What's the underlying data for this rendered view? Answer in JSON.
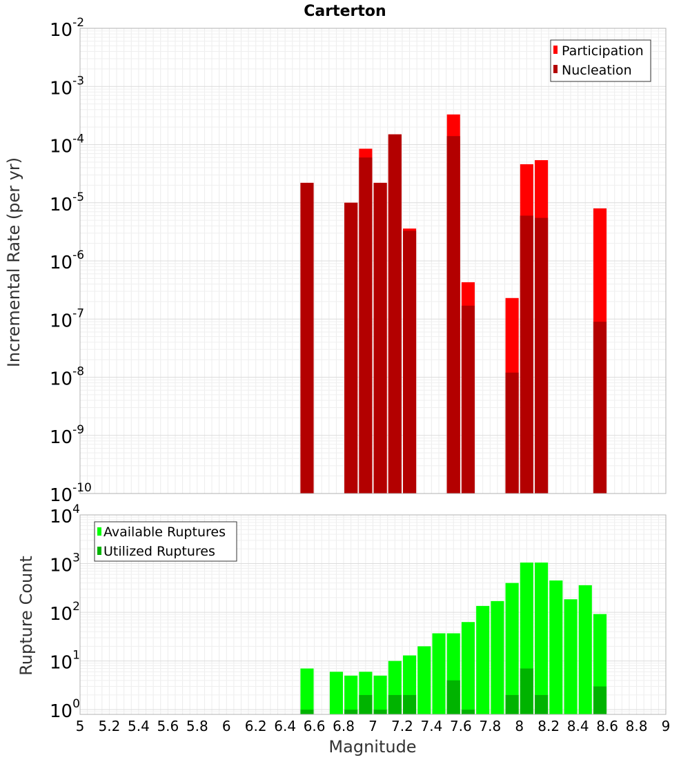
{
  "chart_data": [
    {
      "type": "bar",
      "title": "Carterton",
      "xlabel": "",
      "ylabel": "Incremental Rate (per yr)",
      "y_scale": "log",
      "ylim": [
        1e-10,
        0.01
      ],
      "xlim": [
        5,
        9
      ],
      "y_tick_exponents": [
        "-2",
        "-3",
        "-4",
        "-5",
        "-6",
        "-7",
        "-8",
        "-9",
        "-10"
      ],
      "y_tick_base": "10",
      "grid": true,
      "legend_position": "top-right",
      "bar_width": 0.09,
      "x": [
        6.55,
        6.85,
        6.95,
        7.05,
        7.15,
        7.25,
        7.55,
        7.65,
        7.95,
        8.05,
        8.15,
        8.55
      ],
      "series": [
        {
          "name": "Participation",
          "color": "#ff0000",
          "values": [
            2.2e-05,
            1e-05,
            8.5e-05,
            2.2e-05,
            0.00015,
            3.6e-06,
            0.00033,
            4.3e-07,
            2.3e-07,
            4.6e-05,
            5.4e-05,
            8e-06
          ]
        },
        {
          "name": "Nucleation",
          "color": "#b30000",
          "values": [
            2.2e-05,
            1e-05,
            6e-05,
            2.2e-05,
            0.00015,
            3.3e-06,
            0.00014,
            1.7e-07,
            1.2e-08,
            6e-06,
            5.5e-06,
            9e-08
          ]
        }
      ]
    },
    {
      "type": "bar",
      "xlabel": "Magnitude",
      "ylabel": "Rupture Count",
      "y_scale": "log",
      "ylim": [
        0.8,
        10000
      ],
      "xlim": [
        5,
        9
      ],
      "x_ticks": [
        "5",
        "5.2",
        "5.4",
        "5.6",
        "5.8",
        "6",
        "6.2",
        "6.4",
        "6.6",
        "6.8",
        "7",
        "7.2",
        "7.4",
        "7.6",
        "7.8",
        "8",
        "8.2",
        "8.4",
        "8.6",
        "8.8",
        "9"
      ],
      "y_tick_exponents": [
        "4",
        "3",
        "2",
        "1",
        "0"
      ],
      "y_tick_base": "10",
      "grid": true,
      "legend_position": "top-left",
      "bar_width": 0.09,
      "x": [
        6.55,
        6.75,
        6.85,
        6.95,
        7.05,
        7.15,
        7.25,
        7.35,
        7.45,
        7.55,
        7.65,
        7.75,
        7.85,
        7.95,
        8.05,
        8.15,
        8.25,
        8.35,
        8.45,
        8.55
      ],
      "series": [
        {
          "name": "Available Ruptures",
          "color": "#00ff00",
          "values": [
            7,
            6,
            5,
            6,
            5,
            10,
            13,
            20,
            37,
            37,
            63,
            135,
            170,
            400,
            1050,
            1050,
            450,
            185,
            360,
            92
          ]
        },
        {
          "name": "Utilized Ruptures",
          "color": "#00b300",
          "values": [
            1,
            0,
            1,
            2,
            1,
            2,
            2,
            0,
            0,
            4,
            1,
            0,
            0,
            2,
            7,
            2,
            0,
            0,
            0,
            3
          ]
        }
      ]
    }
  ]
}
